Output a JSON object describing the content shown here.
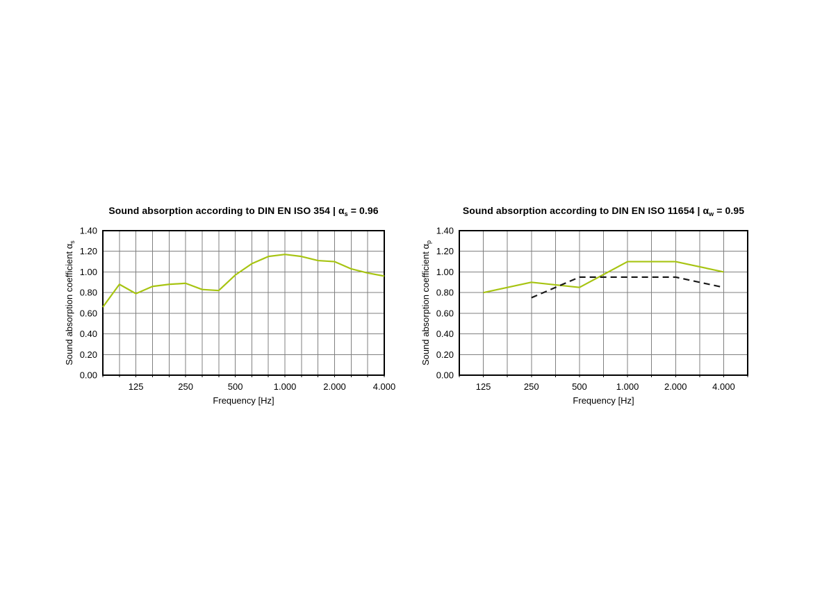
{
  "colors": {
    "series_green": "#a7c412",
    "series_black": "#1a1a1a",
    "grid": "#7f7f7f",
    "axis": "#000000",
    "text": "#000000",
    "background": "#ffffff"
  },
  "chart_data": [
    {
      "type": "line",
      "title": "Sound absorption according to DIN EN ISO 354 | αs = 0.96",
      "title_parts": {
        "prefix": "Sound absorption according to DIN EN ISO 354 | α",
        "sub": "s",
        "suffix": " = 0.96"
      },
      "xlabel": "Frequency [Hz]",
      "ylabel": "Sound absorption coefficient αs",
      "ylabel_parts": {
        "prefix": "Sound absorption coefficient α",
        "sub": "s"
      },
      "ylim": [
        0.0,
        1.4
      ],
      "y_step": 0.2,
      "y_tick_labels": [
        "1.40",
        "1.20",
        "1.00",
        "0.80",
        "0.60",
        "0.40",
        "0.20",
        "0.00"
      ],
      "grid": true,
      "legend": "none",
      "x_gridline_count": 18,
      "x_tick_labels": [
        {
          "pos": 2,
          "text": "125"
        },
        {
          "pos": 5,
          "text": "250"
        },
        {
          "pos": 8,
          "text": "500"
        },
        {
          "pos": 11,
          "text": "1.000"
        },
        {
          "pos": 14,
          "text": "2.000"
        },
        {
          "pos": 17,
          "text": "4.000"
        }
      ],
      "series": [
        {
          "name": "absorption-coefficient-alpha-s",
          "color": "#a7c412",
          "style": "solid",
          "x_hz": [
            80,
            100,
            125,
            160,
            200,
            250,
            315,
            400,
            500,
            630,
            800,
            1000,
            1250,
            1600,
            2000,
            2500,
            3150,
            4000
          ],
          "pos": [
            0,
            1,
            2,
            3,
            4,
            5,
            6,
            7,
            8,
            9,
            10,
            11,
            12,
            13,
            14,
            15,
            16,
            17
          ],
          "values": [
            0.66,
            0.88,
            0.79,
            0.86,
            0.88,
            0.89,
            0.83,
            0.82,
            0.97,
            1.08,
            1.15,
            1.17,
            1.15,
            1.11,
            1.1,
            1.03,
            0.99,
            0.96
          ]
        }
      ]
    },
    {
      "type": "line",
      "title": "Sound absorption according to DIN EN ISO 11654 | αw = 0.95",
      "title_parts": {
        "prefix": "Sound absorption according to DIN EN ISO 11654 | α",
        "sub": "w",
        "suffix": " = 0.95"
      },
      "xlabel": "Frequency [Hz]",
      "ylabel": "Sound absorption coefficient αp",
      "ylabel_parts": {
        "prefix": "Sound absorption coefficient α",
        "sub": "p"
      },
      "ylim": [
        0.0,
        1.4
      ],
      "y_step": 0.2,
      "y_tick_labels": [
        "1.40",
        "1.20",
        "1.00",
        "0.80",
        "0.60",
        "0.40",
        "0.20",
        "0.00"
      ],
      "grid": true,
      "legend": "none",
      "x_gridline_count": 13,
      "x_tick_labels": [
        {
          "pos": 1,
          "text": "125"
        },
        {
          "pos": 3,
          "text": "250"
        },
        {
          "pos": 5,
          "text": "500"
        },
        {
          "pos": 7,
          "text": "1.000"
        },
        {
          "pos": 9,
          "text": "2.000"
        },
        {
          "pos": 11,
          "text": "4.000"
        }
      ],
      "series": [
        {
          "name": "absorption-coefficient-alpha-p",
          "color": "#a7c412",
          "style": "solid",
          "x_hz": [
            125,
            250,
            500,
            1000,
            2000,
            4000
          ],
          "pos": [
            1,
            3,
            5,
            7,
            9,
            11
          ],
          "values": [
            0.8,
            0.9,
            0.85,
            1.1,
            1.1,
            1.0
          ]
        },
        {
          "name": "reference-curve",
          "color": "#1a1a1a",
          "style": "dashed",
          "x_hz": [
            250,
            500,
            1000,
            2000,
            4000
          ],
          "pos": [
            3,
            5,
            7,
            9,
            11
          ],
          "values": [
            0.75,
            0.95,
            0.95,
            0.95,
            0.85
          ]
        }
      ]
    }
  ]
}
